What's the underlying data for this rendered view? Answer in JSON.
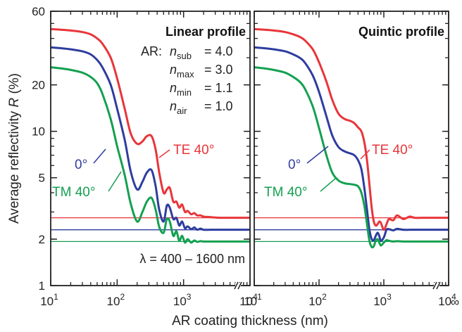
{
  "colors": {
    "te": "#e8353a",
    "normal": "#2e3d9f",
    "tm": "#14a050",
    "axis": "#222222"
  },
  "ylabel": {
    "main": "Average reflectivity ",
    "sym": "R",
    "unit": " (%)"
  },
  "xlabel": "AR coating thickness  (nm)",
  "infinity_label": "∞",
  "chart_data": [
    {
      "type": "line",
      "title": "Linear profile",
      "x_scale": "log",
      "y_scale": "log",
      "xlim": [
        10,
        10000
      ],
      "ylim": [
        1,
        60
      ],
      "x_ticks": [
        {
          "base": "10",
          "exp": "1",
          "value": 10
        },
        {
          "base": "10",
          "exp": "2",
          "value": 100
        },
        {
          "base": "10",
          "exp": "3",
          "value": 1000
        },
        {
          "base": "10",
          "exp": "4",
          "value": 10000
        }
      ],
      "y_ticks": [
        {
          "label": "1",
          "value": 1
        },
        {
          "label": "2",
          "value": 2
        },
        {
          "label": "5",
          "value": 5
        },
        {
          "label": "10",
          "value": 10
        },
        {
          "label": "20",
          "value": 20
        },
        {
          "label": "60",
          "value": 60
        }
      ],
      "ar_params": {
        "prefix": "AR:",
        "rows": [
          {
            "sym": "n",
            "sub": "sub",
            "val": "= 4.0"
          },
          {
            "sym": "n",
            "sub": "max",
            "val": "= 3.0"
          },
          {
            "sym": "n",
            "sub": "min",
            "val": "= 1.1"
          },
          {
            "sym": "n",
            "sub": "air",
            "val": "= 1.0"
          }
        ]
      },
      "wavelength_note": "λ = 400 – 1600 nm",
      "series": [
        {
          "name": "TE 40°",
          "color_key": "te",
          "asymptote": 2.75,
          "x": [
            10,
            15,
            20,
            30,
            40,
            50,
            60,
            80,
            100,
            130,
            160,
            200,
            240,
            280,
            330,
            380,
            430,
            500,
            560,
            620,
            700,
            780,
            860,
            950,
            1050,
            1150,
            1300,
            1450,
            1600,
            1800,
            2000,
            2500,
            3000,
            4000,
            10000
          ],
          "y": [
            46,
            45.5,
            45,
            44,
            42.5,
            40,
            37,
            30,
            22,
            14,
            9.7,
            8.3,
            8.6,
            9.3,
            9.3,
            7.6,
            5.4,
            4.0,
            4.2,
            4.3,
            3.5,
            3.5,
            3.2,
            3.35,
            3.0,
            3.05,
            2.9,
            2.95,
            2.85,
            2.85,
            2.8,
            2.78,
            2.76,
            2.75,
            2.75
          ]
        },
        {
          "name": "0°",
          "color_key": "normal",
          "asymptote": 2.3,
          "x": [
            10,
            15,
            20,
            30,
            40,
            50,
            60,
            80,
            100,
            130,
            160,
            200,
            240,
            280,
            330,
            380,
            430,
            500,
            560,
            620,
            700,
            780,
            860,
            950,
            1050,
            1150,
            1300,
            1450,
            1600,
            1800,
            2000,
            2500,
            3000,
            4000,
            10000
          ],
          "y": [
            35,
            34.5,
            34,
            33,
            31.5,
            29,
            26,
            20,
            14,
            8.8,
            5.5,
            4.2,
            4.7,
            5.4,
            5.6,
            4.4,
            3.1,
            2.6,
            3.3,
            3.2,
            2.7,
            2.75,
            2.45,
            2.6,
            2.35,
            2.42,
            2.32,
            2.38,
            2.3,
            2.34,
            2.3,
            2.3,
            2.3,
            2.3,
            2.3
          ]
        },
        {
          "name": "TM 40°",
          "color_key": "tm",
          "asymptote": 1.93,
          "x": [
            10,
            15,
            20,
            30,
            40,
            50,
            60,
            80,
            100,
            130,
            160,
            200,
            240,
            280,
            330,
            380,
            430,
            500,
            560,
            620,
            700,
            780,
            860,
            950,
            1050,
            1150,
            1300,
            1450,
            1600,
            1800,
            2000,
            2500,
            3000,
            4000,
            10000
          ],
          "y": [
            26,
            25.5,
            25,
            24,
            22.5,
            20.5,
            17.5,
            12,
            8.0,
            5.2,
            3.4,
            2.6,
            3.0,
            3.5,
            3.7,
            3.1,
            2.4,
            2.2,
            2.7,
            2.6,
            2.1,
            2.25,
            1.95,
            2.1,
            1.9,
            2.0,
            1.9,
            1.96,
            1.92,
            1.94,
            1.93,
            1.93,
            1.93,
            1.93,
            1.93
          ]
        }
      ],
      "labels": {
        "te": "TE 40°",
        "normal": "0°",
        "tm": "TM 40°"
      }
    },
    {
      "type": "line",
      "title": "Quintic profile",
      "x_scale": "log",
      "y_scale": "log",
      "xlim": [
        10,
        10000
      ],
      "ylim": [
        1,
        60
      ],
      "x_ticks": [
        {
          "base": "10",
          "exp": "1",
          "value": 10
        },
        {
          "base": "10",
          "exp": "2",
          "value": 100
        },
        {
          "base": "10",
          "exp": "3",
          "value": 1000
        },
        {
          "base": "10",
          "exp": "4",
          "value": 10000
        }
      ],
      "series": [
        {
          "name": "TE 40°",
          "color_key": "te",
          "asymptote": 2.75,
          "x": [
            10,
            15,
            20,
            30,
            40,
            50,
            60,
            80,
            100,
            130,
            160,
            200,
            250,
            300,
            350,
            400,
            450,
            500,
            550,
            600,
            650,
            700,
            750,
            800,
            850,
            900,
            1000,
            1100,
            1200,
            1400,
            1600,
            2000,
            2500,
            3000,
            4000,
            10000
          ],
          "y": [
            46,
            45.5,
            45,
            44,
            42.5,
            41,
            39,
            34,
            28,
            21,
            16,
            13,
            12,
            11.7,
            11.3,
            10.6,
            10.0,
            8.5,
            6.5,
            4.5,
            3.2,
            2.6,
            2.45,
            2.5,
            2.6,
            2.55,
            2.3,
            2.5,
            2.7,
            2.65,
            2.85,
            2.7,
            2.8,
            2.75,
            2.75,
            2.75
          ]
        },
        {
          "name": "0°",
          "color_key": "normal",
          "asymptote": 2.3,
          "x": [
            10,
            15,
            20,
            30,
            40,
            50,
            60,
            80,
            100,
            130,
            160,
            200,
            250,
            300,
            350,
            400,
            450,
            500,
            550,
            600,
            650,
            700,
            750,
            800,
            850,
            900,
            1000,
            1100,
            1200,
            1400,
            1600,
            2000,
            2500,
            3000,
            4000,
            10000
          ],
          "y": [
            35,
            34.5,
            34,
            33,
            31.5,
            30,
            28,
            23,
            18,
            12.5,
            9.4,
            7.9,
            7.4,
            7.2,
            7.0,
            6.5,
            5.7,
            4.3,
            3.1,
            2.3,
            2.0,
            1.97,
            2.1,
            2.2,
            2.1,
            1.95,
            2.05,
            2.3,
            2.32,
            2.28,
            2.33,
            2.3,
            2.3,
            2.3,
            2.3,
            2.3
          ]
        },
        {
          "name": "TM 40°",
          "color_key": "tm",
          "asymptote": 1.93,
          "x": [
            10,
            15,
            20,
            30,
            40,
            50,
            60,
            80,
            100,
            130,
            160,
            200,
            250,
            300,
            350,
            400,
            450,
            500,
            550,
            600,
            650,
            700,
            750,
            800,
            850,
            900,
            1000,
            1100,
            1200,
            1400,
            1600,
            2000,
            2500,
            3000,
            4000,
            10000
          ],
          "y": [
            26,
            25.5,
            25,
            24,
            22.5,
            21,
            19,
            14.5,
            10.5,
            7.0,
            5.4,
            4.8,
            4.6,
            4.55,
            4.5,
            4.4,
            4.0,
            3.3,
            2.5,
            1.95,
            1.78,
            1.8,
            1.95,
            2.0,
            1.9,
            1.82,
            1.9,
            1.97,
            1.95,
            1.93,
            1.94,
            1.93,
            1.93,
            1.93,
            1.93,
            1.93
          ]
        }
      ],
      "labels": {
        "te": "TE 40°",
        "normal": "0°",
        "tm": "TM 40°"
      }
    }
  ]
}
